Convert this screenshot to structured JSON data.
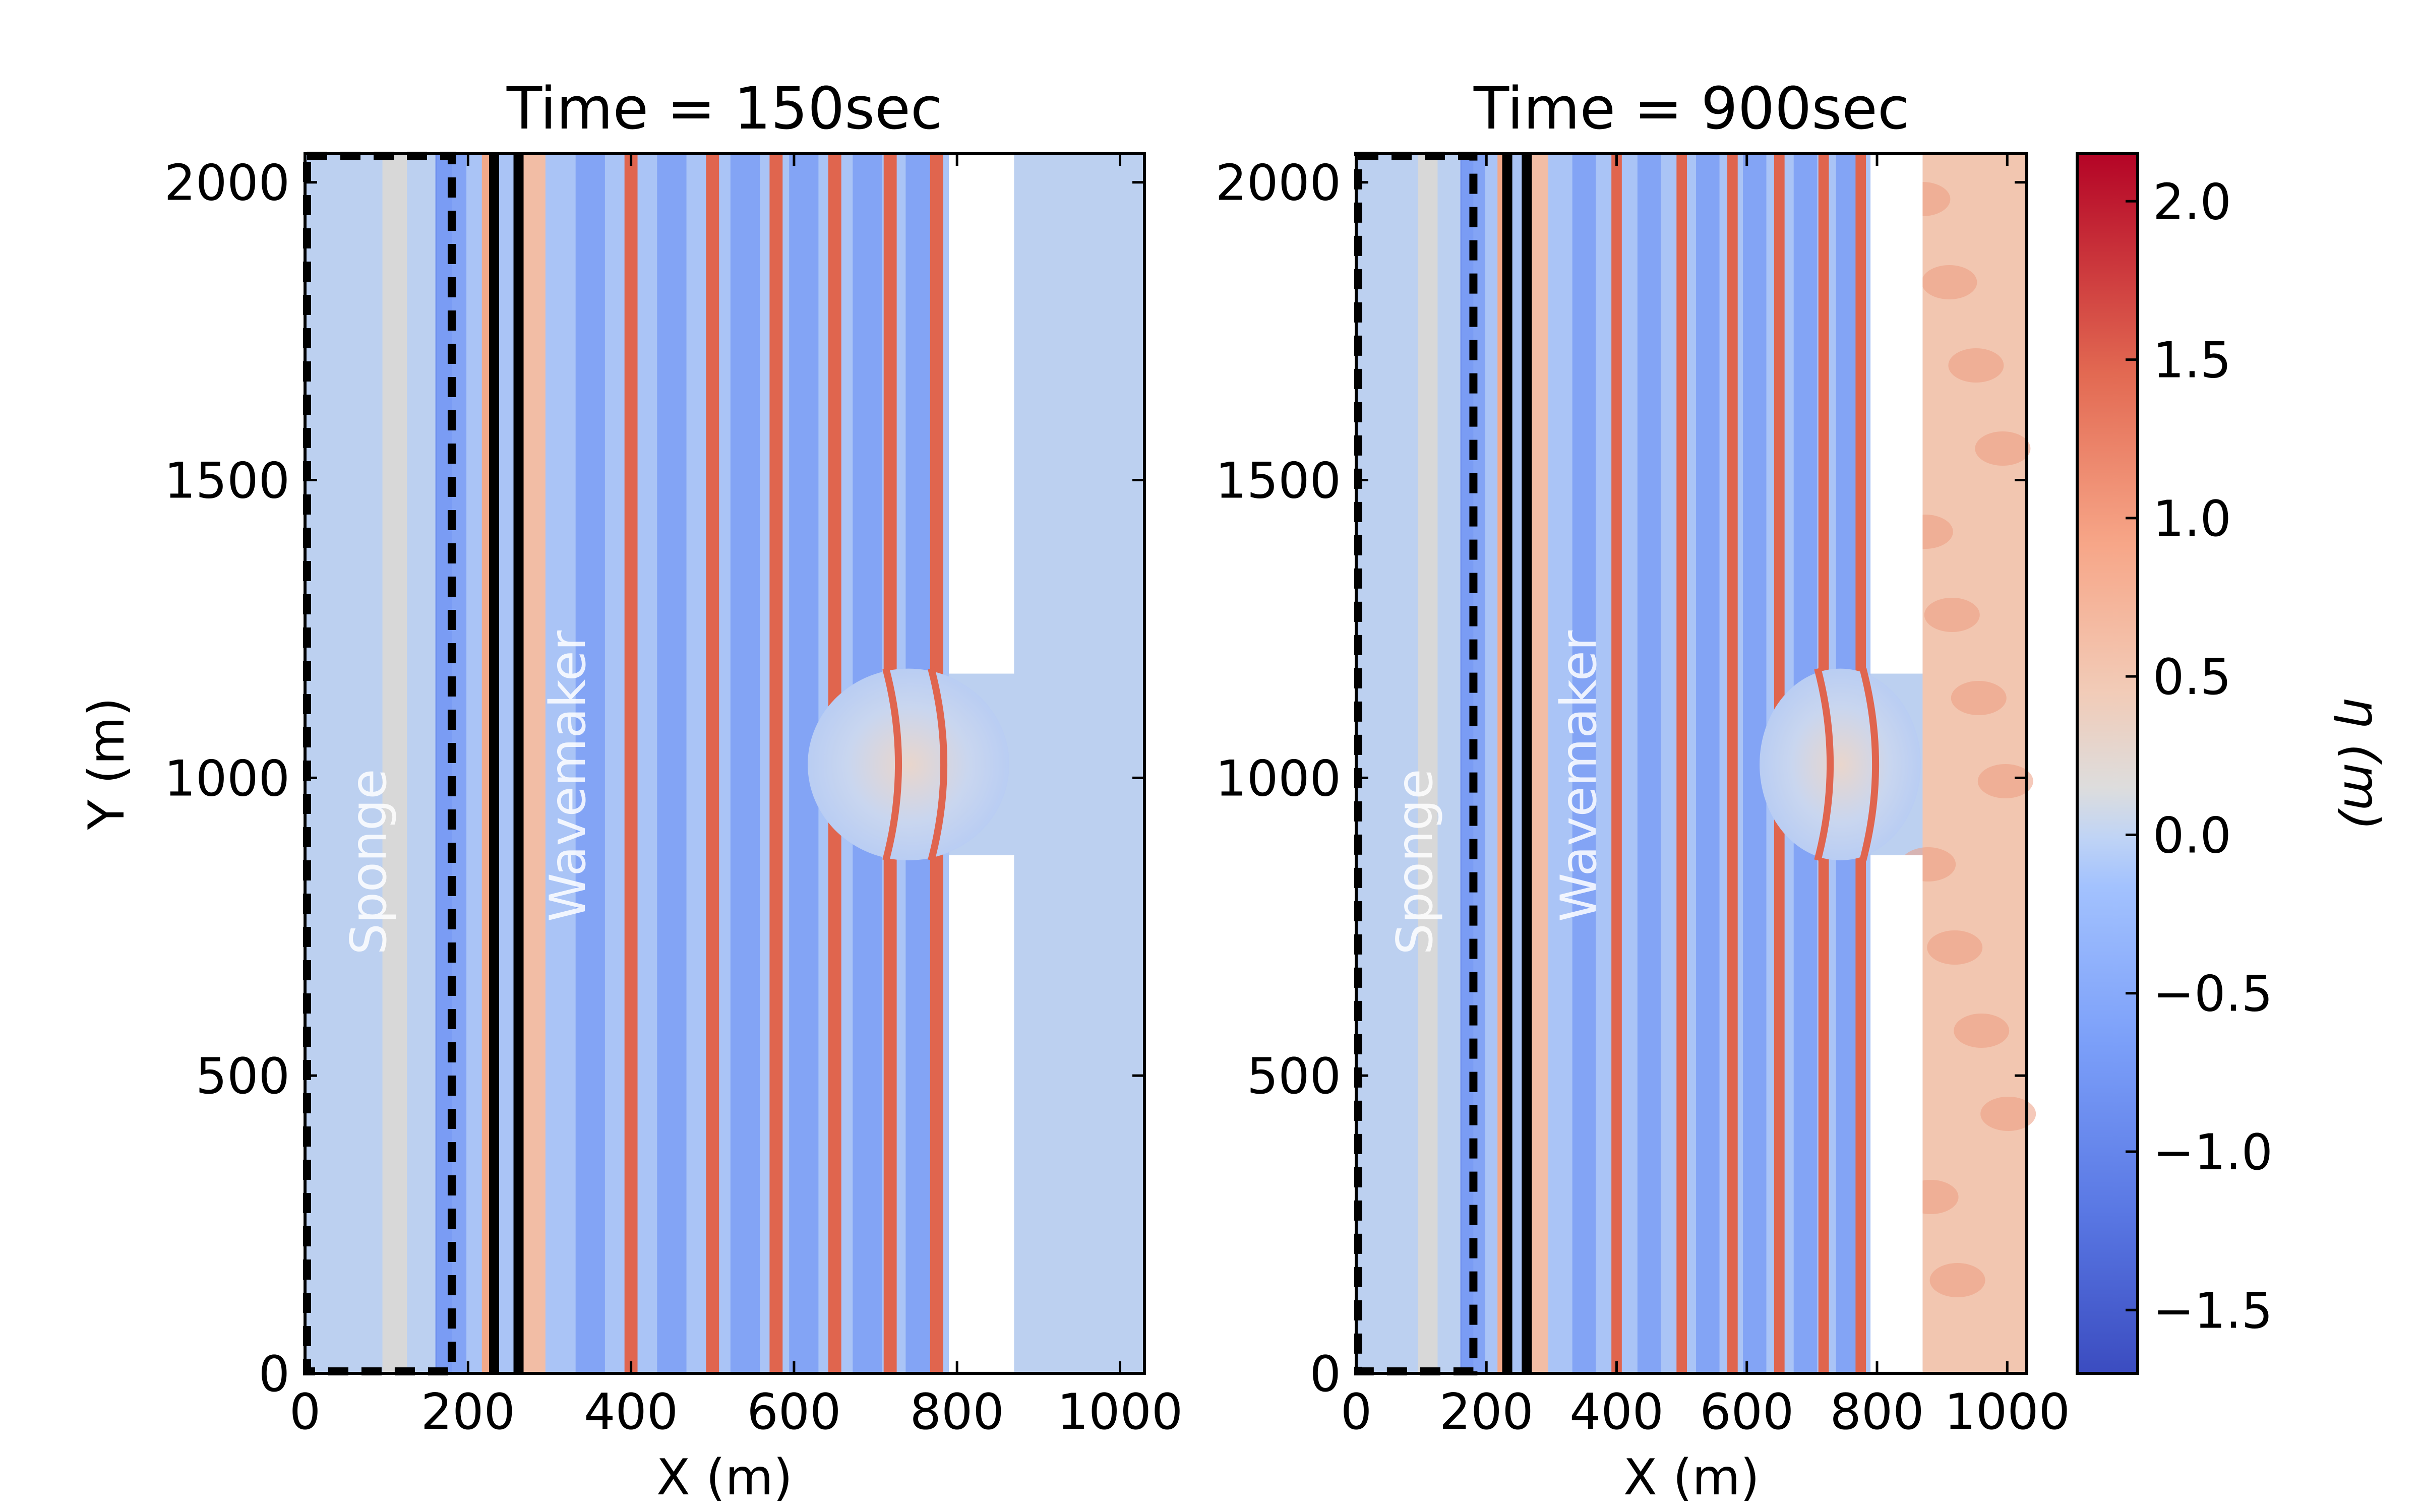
{
  "chart_data": [
    {
      "type": "heatmap",
      "title": "Time = 150sec",
      "xlabel": "X (m)",
      "ylabel": "Y (m)",
      "xlim": [
        0,
        1030
      ],
      "ylim": [
        0,
        2048
      ],
      "xticks": [
        "0",
        "200",
        "400",
        "600",
        "800",
        "1000"
      ],
      "yticks": [
        "0",
        "500",
        "1000",
        "1500",
        "2000"
      ],
      "annotations": [
        "Sponge",
        "Wavemaker"
      ],
      "field": "eta (m)",
      "land_region_x": [
        790,
        870
      ],
      "channel_opening_y": [
        870,
        1175
      ],
      "sponge_layer_x": [
        0,
        180
      ],
      "wavemaker_x": [
        250,
        262
      ],
      "crest_x": [
        225,
        400,
        500,
        578,
        650,
        718,
        775
      ],
      "trough_x": [
        180,
        350,
        450,
        540,
        612,
        690,
        755
      ]
    },
    {
      "type": "heatmap",
      "title": "Time = 900sec",
      "xlabel": "X (m)",
      "ylabel": "Y (m)",
      "xlim": [
        0,
        1030
      ],
      "ylim": [
        0,
        2048
      ],
      "xticks": [
        "0",
        "200",
        "400",
        "600",
        "800",
        "1000"
      ],
      "yticks": [
        "0",
        "500",
        "1000",
        "1500",
        "2000"
      ],
      "annotations": [
        "Sponge",
        "Wavemaker"
      ],
      "field": "eta (m)",
      "land_region_x": [
        790,
        870
      ],
      "channel_opening_y": [
        870,
        1175
      ],
      "sponge_layer_x": [
        0,
        180
      ],
      "wavemaker_x": [
        250,
        262
      ],
      "crest_x": [
        225,
        400,
        500,
        578,
        650,
        718,
        775
      ],
      "trough_x": [
        180,
        350,
        450,
        540,
        612,
        690,
        755
      ]
    }
  ],
  "colorbar": {
    "label": "η (m)",
    "range": [
      -1.7,
      2.15
    ],
    "ticks": [
      "2.0",
      "1.5",
      "1.0",
      "0.5",
      "0.0",
      "−0.5",
      "−1.0",
      "−1.5"
    ],
    "colormap": "coolwarm",
    "low_color": "#3b4cc0",
    "mid_color": "#dddddd",
    "high_color": "#b40426"
  }
}
